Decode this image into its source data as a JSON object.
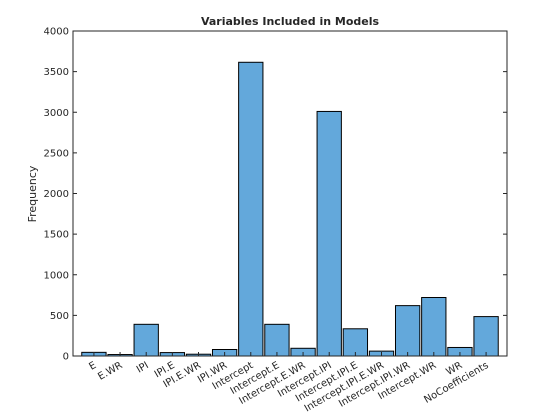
{
  "chart_data": {
    "type": "bar",
    "title": "Variables Included in Models",
    "xlabel": "",
    "ylabel": "Frequency",
    "ylim": [
      0,
      4000
    ],
    "yticks": [
      0,
      500,
      1000,
      1500,
      2000,
      2500,
      3000,
      3500,
      4000
    ],
    "categories": [
      "E",
      "E.WR",
      "IPI",
      "IPI.E",
      "IPI.E.WR",
      "IPI.WR",
      "Intercept",
      "Intercept.E",
      "Intercept.E.WR",
      "Intercept.IPI",
      "Intercept.IPI.E",
      "Intercept.IPI.E.WR",
      "Intercept.IPI.WR",
      "Intercept.WR",
      "WR",
      "NoCoefficients"
    ],
    "values": [
      45,
      18,
      390,
      42,
      22,
      80,
      3615,
      390,
      95,
      3010,
      335,
      60,
      620,
      720,
      105,
      485
    ],
    "bar_color": "#63a8db",
    "edge_color": "#000000",
    "grid": false,
    "legend": "none"
  }
}
